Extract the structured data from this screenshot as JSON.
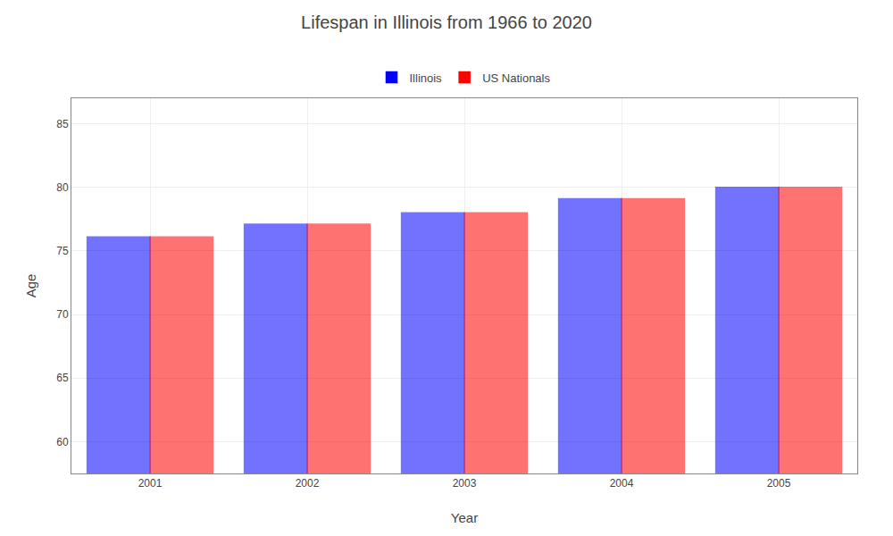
{
  "chart_data": {
    "type": "bar",
    "title": "Lifespan in Illinois from 1966 to 2020",
    "xlabel": "Year",
    "ylabel": "Age",
    "categories": [
      "2001",
      "2002",
      "2003",
      "2004",
      "2005"
    ],
    "series": [
      {
        "name": "Illinois",
        "color": "#0000ff",
        "values": [
          76.1,
          77.1,
          78.0,
          79.1,
          80.0
        ]
      },
      {
        "name": "US Nationals",
        "color": "#ff0000",
        "values": [
          76.1,
          77.1,
          78.0,
          79.1,
          80.0
        ]
      }
    ],
    "ylim": [
      57.5,
      87
    ],
    "yticks": [
      60,
      65,
      70,
      75,
      80,
      85
    ],
    "grid": true,
    "legend": "top"
  }
}
